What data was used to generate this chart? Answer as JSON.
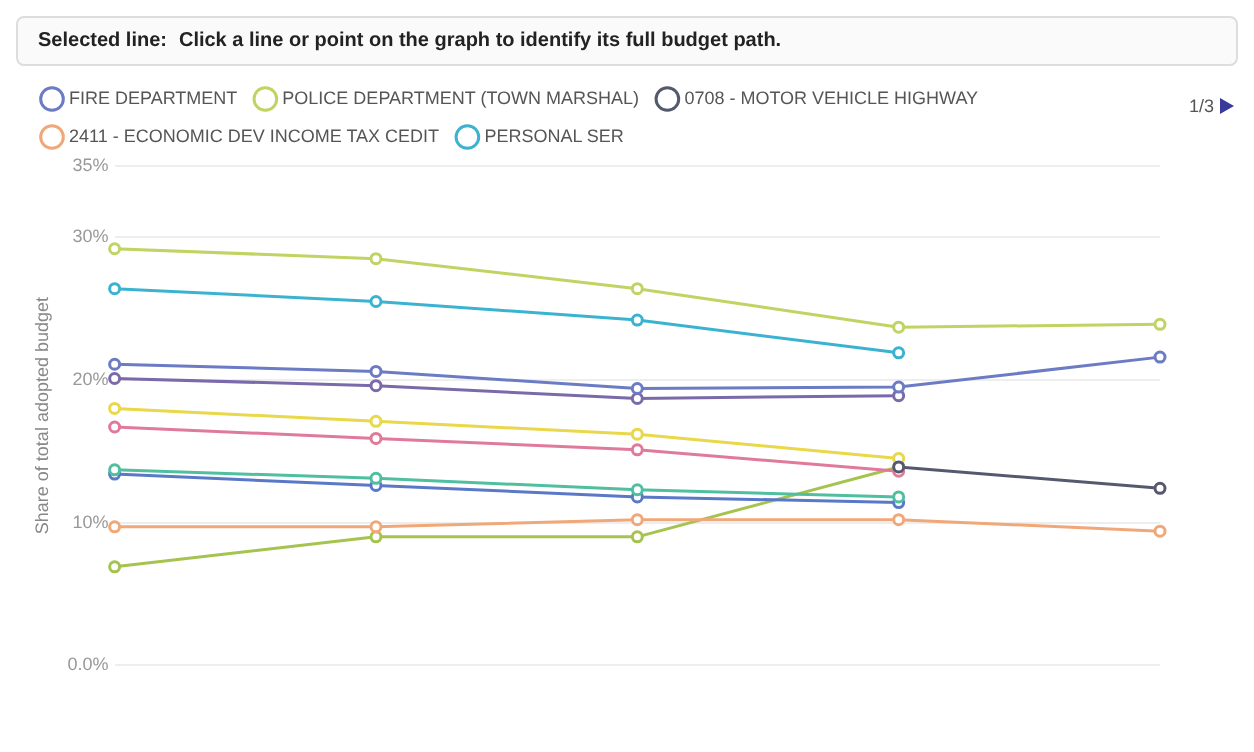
{
  "chart_data": {
    "type": "line",
    "subtitle": "Selected line: Click a line or point on the graph to identify its full budget path.",
    "ylabel": "Share of total adopted budget",
    "annotations": [
      "1/3"
    ],
    "categories": [
      null,
      null,
      null,
      null,
      null
    ],
    "ylim": [
      0,
      35
    ],
    "yticks": [
      {
        "value": 0,
        "label": "0.0%"
      },
      {
        "value": 10,
        "label": "10%"
      },
      {
        "value": 20,
        "label": "20%"
      },
      {
        "value": 30,
        "label": "30%"
      },
      {
        "value": 35,
        "label": "35%"
      }
    ],
    "grid": "y",
    "legend": "top",
    "marker": "circle",
    "line_style": "solid",
    "series": [
      {
        "name": "FIRE DEPARTMENT",
        "color": "#6b7bc4",
        "values": [
          21.1,
          20.6,
          19.4,
          19.5,
          21.6
        ]
      },
      {
        "name": "POLICE DEPARTMENT (TOWN MARSHAL)",
        "color": "#bfd462",
        "values": [
          29.2,
          28.5,
          26.4,
          23.7,
          23.9
        ]
      },
      {
        "name": "0708 - MOTOR VEHICLE HIGHWAY",
        "color": "#55596e",
        "values": [
          null,
          null,
          null,
          13.9,
          12.4
        ]
      },
      {
        "name": "2411 - ECONOMIC DEV INCOME TAX CEDIT",
        "color": "#f0a878",
        "values": [
          9.7,
          9.7,
          10.2,
          10.2,
          9.4
        ]
      },
      {
        "name": "PERSONAL SER",
        "color": "#3bb3d0",
        "values": [
          26.4,
          25.5,
          24.2,
          21.9,
          null
        ]
      },
      {
        "color": "#7a6aaa",
        "values": [
          20.1,
          19.6,
          18.7,
          18.9,
          null
        ]
      },
      {
        "color": "#e8d84a",
        "values": [
          18.0,
          17.1,
          16.2,
          14.5,
          null
        ]
      },
      {
        "color": "#e07a9a",
        "values": [
          16.7,
          15.9,
          15.1,
          13.6,
          null
        ]
      },
      {
        "color": "#4fbfa0",
        "values": [
          13.7,
          13.1,
          12.3,
          11.8,
          null
        ]
      },
      {
        "color": "#5a78c8",
        "values": [
          13.4,
          12.6,
          11.8,
          11.4,
          null
        ]
      },
      {
        "color": "#a5c34f",
        "values": [
          6.9,
          9.0,
          9.0,
          13.9,
          null
        ]
      }
    ]
  }
}
